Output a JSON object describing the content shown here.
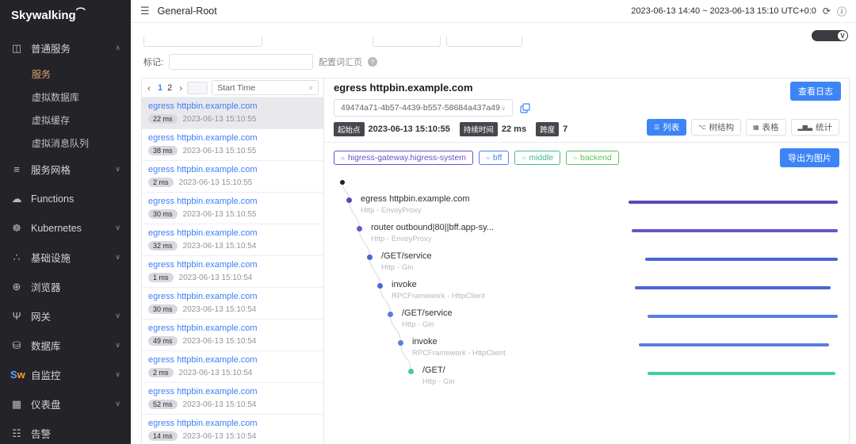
{
  "app": {
    "logo_text": "Skywalking"
  },
  "header": {
    "title": "General-Root",
    "time_range": "2023-06-13 14:40 ~ 2023-06-13 15:10  UTC+0:0"
  },
  "toolbar": {
    "version_label": "V"
  },
  "sidebar": {
    "sections": [
      {
        "label": "普通服务",
        "icon": "services-icon",
        "state": "expanded"
      },
      {
        "label": "服务",
        "type": "sub",
        "active": true
      },
      {
        "label": "虚拟数据库",
        "type": "sub"
      },
      {
        "label": "虚拟缓存",
        "type": "sub"
      },
      {
        "label": "虚拟消息队列",
        "type": "sub"
      },
      {
        "label": "服务网格",
        "icon": "mesh-icon",
        "state": "collapsed"
      },
      {
        "label": "Functions",
        "icon": "functions-icon"
      },
      {
        "label": "Kubernetes",
        "icon": "kubernetes-icon",
        "state": "collapsed"
      },
      {
        "label": "基础设施",
        "icon": "infrastructure-icon",
        "state": "collapsed"
      },
      {
        "label": "浏览器",
        "icon": "browser-icon"
      },
      {
        "label": "网关",
        "icon": "gateway-icon",
        "state": "collapsed"
      },
      {
        "label": "数据库",
        "icon": "database-icon",
        "state": "collapsed"
      },
      {
        "label": "自监控",
        "icon": "selfmonitor-icon",
        "state": "collapsed"
      },
      {
        "label": "仪表盘",
        "icon": "dashboard-icon",
        "state": "collapsed"
      },
      {
        "label": "告警",
        "icon": "alarm-icon"
      }
    ]
  },
  "filters": {
    "tag_label": "标记:",
    "tag_value": "",
    "config_link": "配置词汇页"
  },
  "trace_list": {
    "pagination": {
      "prev": "‹",
      "pages": [
        "1",
        "2"
      ],
      "next": "›",
      "current": "1"
    },
    "sort_selected": "Start Time",
    "items": [
      {
        "name": "egress httpbin.example.com",
        "duration": "22 ms",
        "start_time": "2023-06-13 15:10:55",
        "selected": true
      },
      {
        "name": "egress httpbin.example.com",
        "duration": "38 ms",
        "start_time": "2023-06-13 15:10:55"
      },
      {
        "name": "egress httpbin.example.com",
        "duration": "2 ms",
        "start_time": "2023-06-13 15:10:55"
      },
      {
        "name": "egress httpbin.example.com",
        "duration": "30 ms",
        "start_time": "2023-06-13 15:10:55"
      },
      {
        "name": "egress httpbin.example.com",
        "duration": "32 ms",
        "start_time": "2023-06-13 15:10:54"
      },
      {
        "name": "egress httpbin.example.com",
        "duration": "1 ms",
        "start_time": "2023-06-13 15:10:54"
      },
      {
        "name": "egress httpbin.example.com",
        "duration": "30 ms",
        "start_time": "2023-06-13 15:10:54"
      },
      {
        "name": "egress httpbin.example.com",
        "duration": "49 ms",
        "start_time": "2023-06-13 15:10:54"
      },
      {
        "name": "egress httpbin.example.com",
        "duration": "2 ms",
        "start_time": "2023-06-13 15:10:54"
      },
      {
        "name": "egress httpbin.example.com",
        "duration": "52 ms",
        "start_time": "2023-06-13 15:10:54"
      },
      {
        "name": "egress httpbin.example.com",
        "duration": "14 ms",
        "start_time": "2023-06-13 15:10:54"
      }
    ]
  },
  "trace_detail": {
    "title": "egress httpbin.example.com",
    "view_logs_button": "查看日志",
    "trace_id": "49474a71-4b57-4439-b557-58684a437a49",
    "meta": [
      {
        "label": "起始点",
        "value": "2023-06-13 15:10:55"
      },
      {
        "label": "持续时间",
        "value": "22 ms"
      },
      {
        "label": "跨度",
        "value": "7"
      }
    ],
    "view_modes": [
      {
        "label": "列表",
        "icon": "list-icon",
        "active": true
      },
      {
        "label": "树结构",
        "icon": "tree-icon"
      },
      {
        "label": "表格",
        "icon": "table-icon"
      },
      {
        "label": "统计",
        "icon": "stats-icon"
      }
    ],
    "services_legend": [
      {
        "label": "higress-gateway.higress-system",
        "color": "#6a4fc5"
      },
      {
        "label": "bff",
        "color": "#4d7ff7"
      },
      {
        "label": "middle",
        "color": "#45b796"
      },
      {
        "label": "backend",
        "color": "#5cc45c"
      }
    ],
    "export_button": "导出为图片",
    "spans": [
      {
        "name": "egress httpbin.example.com",
        "component": "Http - EnvoyProxy",
        "depth": 0,
        "color": "#5b48b8",
        "bar_start": 0,
        "bar_end": 100
      },
      {
        "name": "router outbound|80||bff.app-sy...",
        "component": "Http - EnvoyProxy",
        "depth": 1,
        "color": "#6a55c9",
        "bar_start": 1.5,
        "bar_end": 100
      },
      {
        "name": "/GET/service",
        "component": "Http - Gin",
        "depth": 2,
        "color": "#4a66d6",
        "bar_start": 8,
        "bar_end": 100
      },
      {
        "name": "invoke",
        "component": "RPCFramework - HttpClient",
        "depth": 3,
        "color": "#4a66d6",
        "bar_start": 3,
        "bar_end": 96.5
      },
      {
        "name": "/GET/service",
        "component": "Http - Gin",
        "depth": 4,
        "color": "#5a7de0",
        "bar_start": 9,
        "bar_end": 100
      },
      {
        "name": "invoke",
        "component": "RPCFramework - HttpClient",
        "depth": 5,
        "color": "#5a7de0",
        "bar_start": 5,
        "bar_end": 96
      },
      {
        "name": "/GET/",
        "component": "Http - Gin",
        "depth": 6,
        "color": "#3ecf9e",
        "bar_start": 9,
        "bar_end": 99
      }
    ]
  }
}
